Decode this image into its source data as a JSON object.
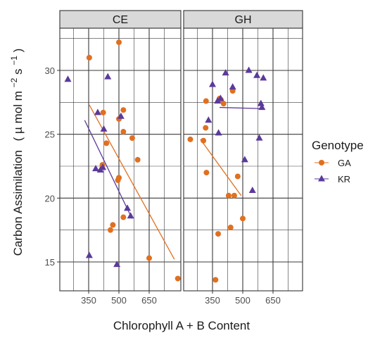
{
  "chart_data": {
    "type": "scatter",
    "xlabel": "Chlorophyll A + B Content",
    "ylabel_main": "Carbon Assimilation",
    "ylabel_units": {
      "open": "(",
      "mu": "µ",
      "mol": " mol m",
      "exp1": "−2",
      "s": " s",
      "exp2": "−1",
      "close": ")"
    },
    "facets": [
      "CE",
      "GH"
    ],
    "x_ticks": [
      350,
      500,
      650
    ],
    "y_ticks": [
      15,
      20,
      25,
      30
    ],
    "xlim": [
      225,
      820
    ],
    "ylim": [
      12.8,
      32.8
    ],
    "grid": true,
    "legend": {
      "title": "Genotype",
      "position": "right",
      "entries": [
        {
          "name": "GA",
          "color": "#E07020",
          "shape": "circle"
        },
        {
          "name": "KR",
          "color": "#5B3A9B",
          "shape": "triangle"
        }
      ]
    },
    "series": [
      {
        "name": "GA",
        "color": "#E07020",
        "panels": [
          {
            "facet": "CE",
            "points": [
              [
                353,
                31.0
              ],
              [
                422,
                26.7
              ],
              [
                438,
                24.3
              ],
              [
                418,
                22.6
              ],
              [
                470,
                17.9
              ],
              [
                458,
                17.5
              ],
              [
                495,
                21.4
              ],
              [
                500,
                21.6
              ],
              [
                500,
                26.2
              ],
              [
                500,
                32.2
              ],
              [
                522,
                26.9
              ],
              [
                522,
                25.2
              ],
              [
                522,
                18.5
              ],
              [
                566,
                24.7
              ],
              [
                593,
                23.0
              ],
              [
                650,
                15.3
              ],
              [
                792,
                13.7
              ]
            ],
            "trend": [
              [
                353,
                27.3
              ],
              [
                775,
                15.2
              ]
            ]
          },
          {
            "facet": "GH",
            "points": [
              [
                240,
                24.6
              ],
              [
                305,
                24.5
              ],
              [
                316,
                25.5
              ],
              [
                318,
                27.6
              ],
              [
                320,
                22.0
              ],
              [
                365,
                13.6
              ],
              [
                378,
                17.2
              ],
              [
                385,
                27.8
              ],
              [
                392,
                27.7
              ],
              [
                405,
                27.4
              ],
              [
                430,
                20.2
              ],
              [
                450,
                28.4
              ],
              [
                458,
                20.2
              ],
              [
                440,
                17.7
              ],
              [
                475,
                21.7
              ],
              [
                500,
                18.4
              ]
            ],
            "trend": [
              [
                290,
                24.6
              ],
              [
                492,
                20.2
              ]
            ]
          }
        ]
      },
      {
        "name": "KR",
        "color": "#5B3A9B",
        "panels": [
          {
            "facet": "CE",
            "points": [
              [
                247,
                29.3
              ],
              [
                353,
                15.5
              ],
              [
                385,
                22.3
              ],
              [
                395,
                26.7
              ],
              [
                408,
                22.2
              ],
              [
                420,
                22.4
              ],
              [
                425,
                25.4
              ],
              [
                445,
                29.5
              ],
              [
                490,
                14.8
              ],
              [
                510,
                26.4
              ],
              [
                542,
                19.2
              ],
              [
                558,
                18.6
              ]
            ],
            "trend": [
              [
                330,
                26.1
              ],
              [
                565,
                18.4
              ]
            ]
          },
          {
            "facet": "GH",
            "points": [
              [
                330,
                26.1
              ],
              [
                350,
                28.9
              ],
              [
                375,
                27.6
              ],
              [
                380,
                25.1
              ],
              [
                390,
                27.8
              ],
              [
                415,
                29.8
              ],
              [
                450,
                28.7
              ],
              [
                510,
                23.0
              ],
              [
                530,
                30.0
              ],
              [
                548,
                20.6
              ],
              [
                570,
                29.6
              ],
              [
                582,
                24.7
              ],
              [
                590,
                27.4
              ],
              [
                595,
                27.1
              ],
              [
                602,
                29.4
              ]
            ],
            "trend": [
              [
                385,
                27.1
              ],
              [
                610,
                27.0
              ]
            ]
          }
        ]
      }
    ]
  }
}
